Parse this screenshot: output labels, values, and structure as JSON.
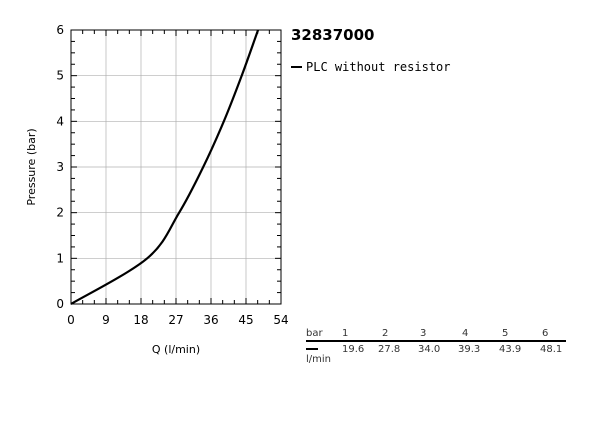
{
  "product_code": "32837000",
  "legend": {
    "label": "PLC without resistor"
  },
  "table": {
    "header_label": "bar",
    "unit_label": "l/min",
    "pressures": [
      "1",
      "2",
      "3",
      "4",
      "5",
      "6"
    ],
    "flows": [
      "19.6",
      "27.8",
      "34.0",
      "39.3",
      "43.9",
      "48.1"
    ]
  },
  "chart_data": {
    "type": "line",
    "title": "",
    "xlabel": "Q (l/min)",
    "ylabel": "Pressure (bar)",
    "xlim": [
      0,
      54
    ],
    "ylim": [
      0,
      6
    ],
    "xticks": [
      0,
      9,
      18,
      27,
      36,
      45,
      54
    ],
    "yticks": [
      0,
      1,
      2,
      3,
      4,
      5,
      6
    ],
    "grid": true,
    "series": [
      {
        "name": "PLC without resistor",
        "x": [
          0,
          19.6,
          27.8,
          34.0,
          39.3,
          43.9,
          48.1
        ],
        "y": [
          0,
          1,
          2,
          3,
          4,
          5,
          6
        ]
      }
    ]
  }
}
